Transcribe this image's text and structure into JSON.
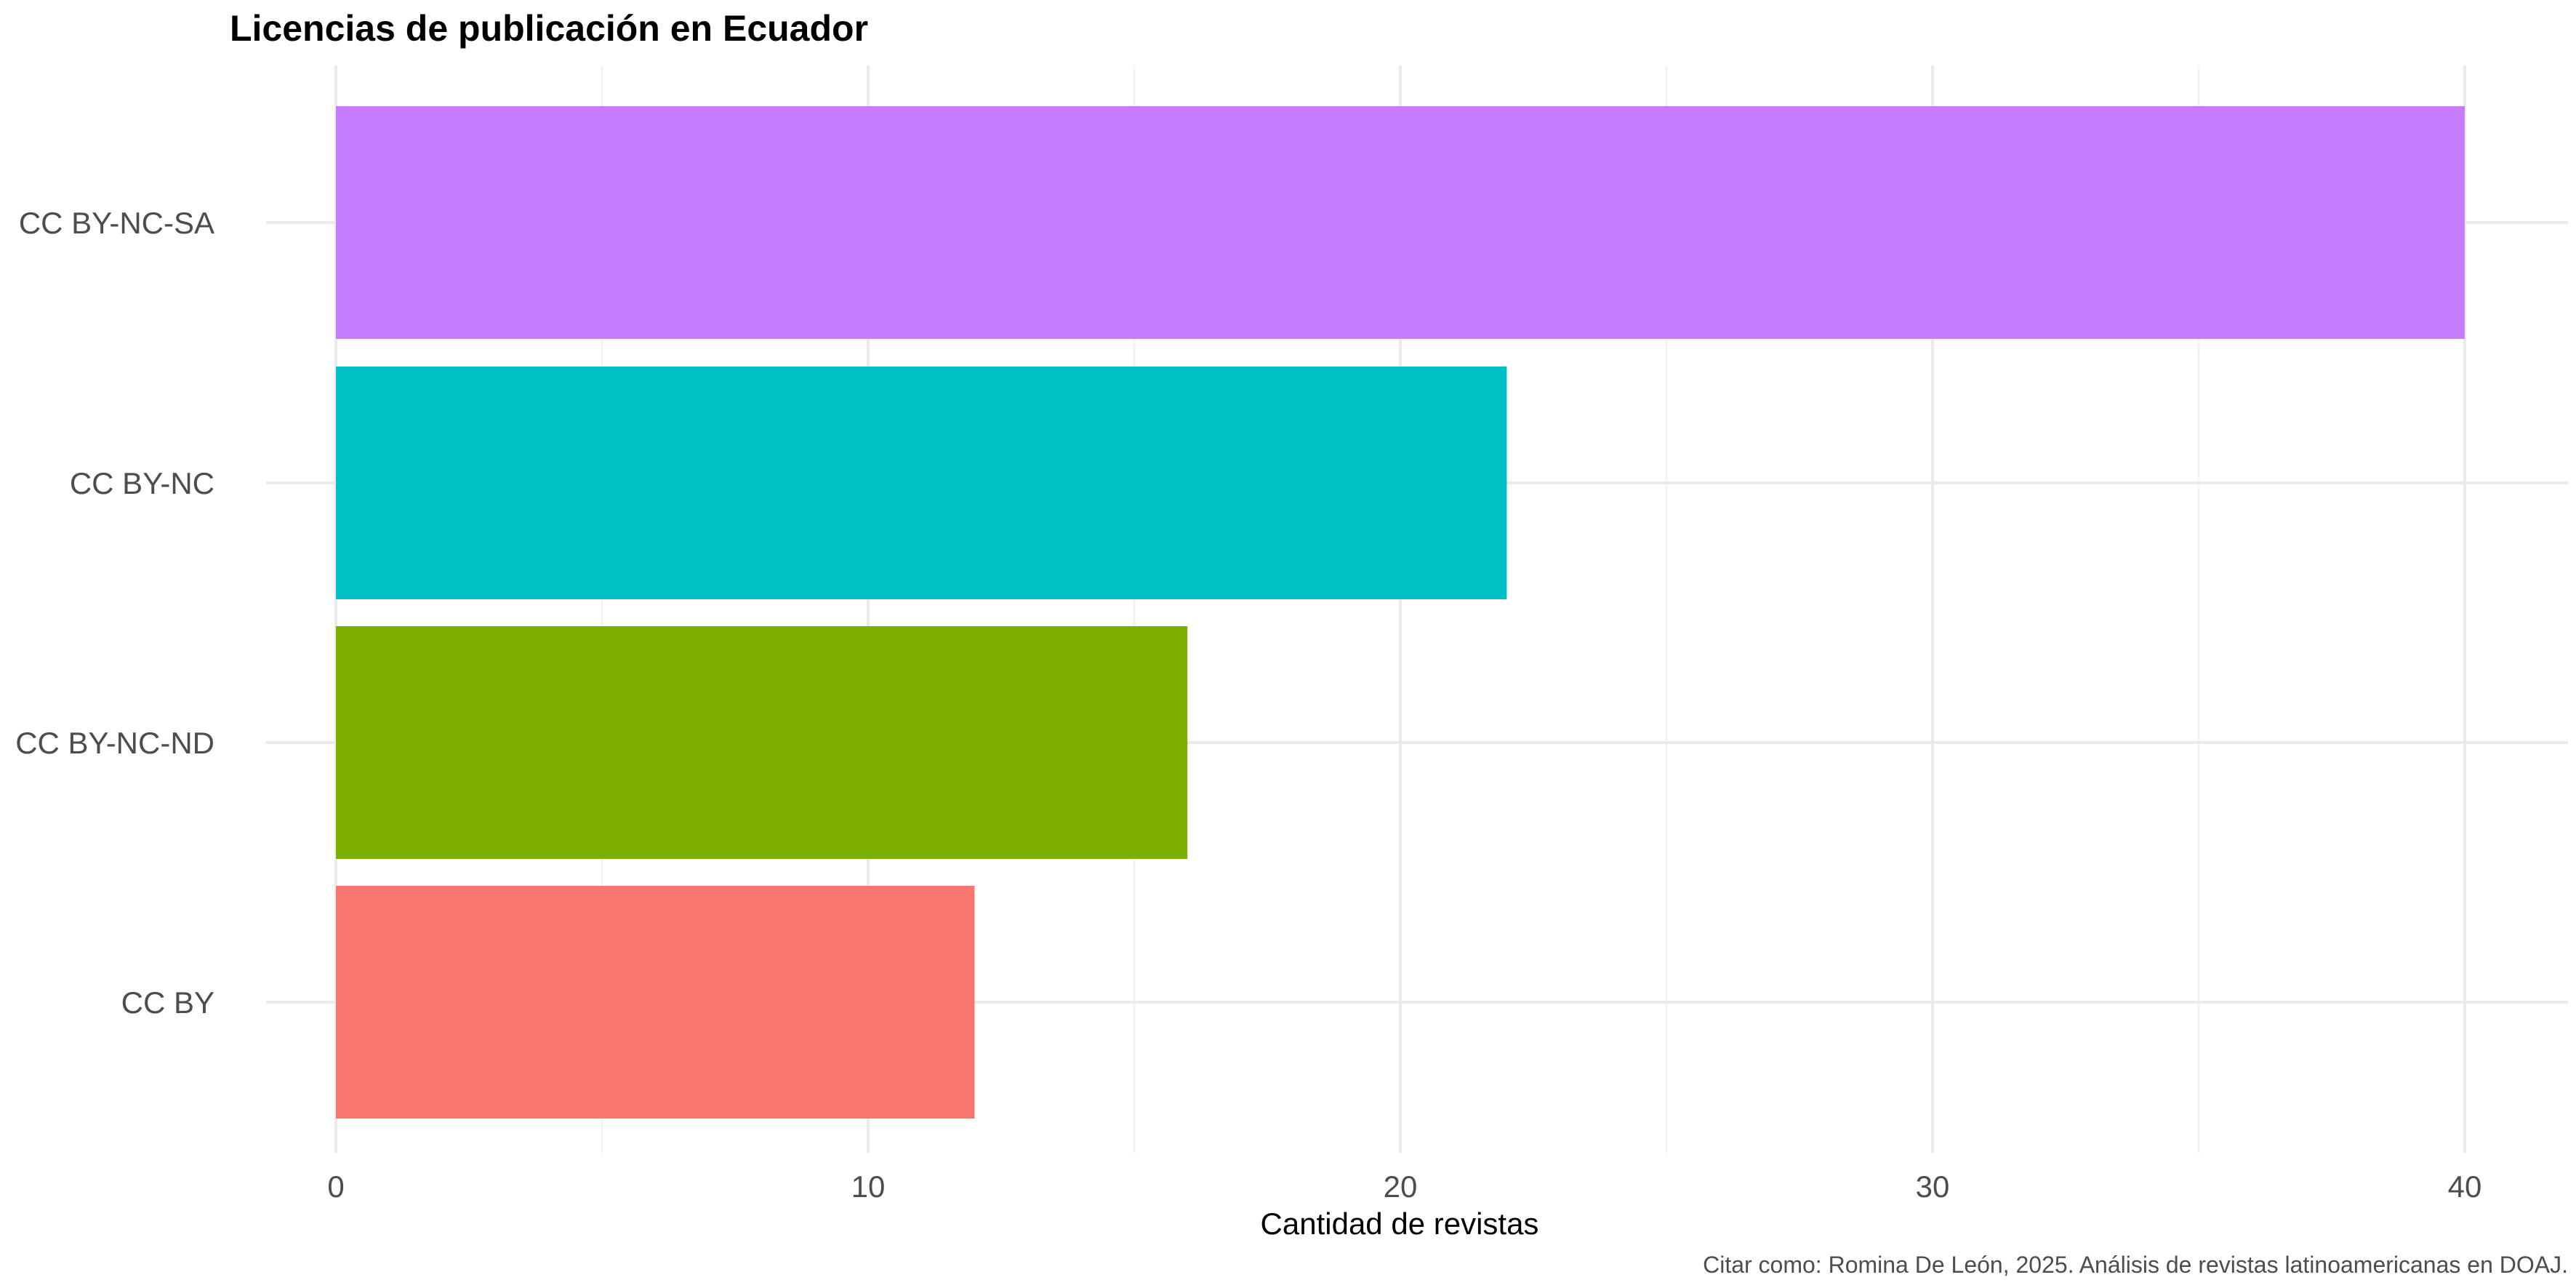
{
  "chart_data": {
    "type": "bar",
    "orientation": "horizontal",
    "title": "Licencias de publicación en Ecuador",
    "xlabel": "Cantidad de revistas",
    "ylabel": "",
    "caption": "Citar como: Romina De León, 2025. Análisis de revistas latinoamericanas en DOAJ.",
    "categories": [
      "CC BY",
      "CC BY-NC-ND",
      "CC BY-NC",
      "CC BY-NC-SA"
    ],
    "values": [
      12,
      16,
      22,
      40
    ],
    "colors": [
      "#F8766D",
      "#7CAE00",
      "#00BFC4",
      "#C77CFF"
    ],
    "xlim": [
      0,
      40
    ],
    "x_ticks": [
      0,
      10,
      20,
      30,
      40
    ],
    "x_tick_labels": [
      "0",
      "10",
      "20",
      "30",
      "40"
    ],
    "grid": true,
    "legend": "none"
  }
}
